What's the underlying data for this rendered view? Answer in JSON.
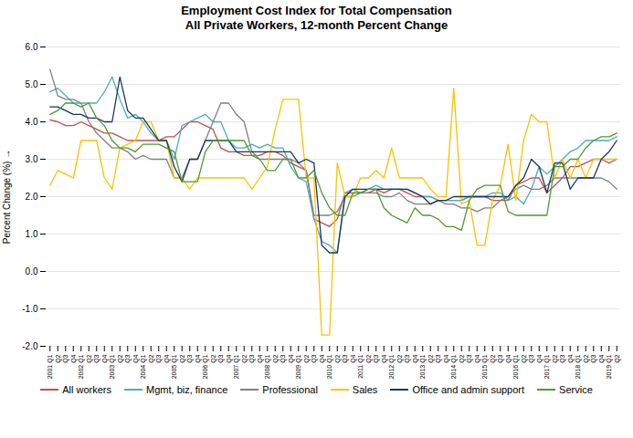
{
  "chart_data": {
    "type": "line",
    "title": "Employment Cost Index for Total Compensation\nAll Private Workers, 12-month Percent Change",
    "ylabel": "Percent Change (%)",
    "categories": [
      "2001 Q1",
      "Q2",
      "Q3",
      "Q4",
      "2002 Q1",
      "Q2",
      "Q3",
      "Q4",
      "2003 Q1",
      "Q2",
      "Q3",
      "Q4",
      "2004 Q1",
      "Q2",
      "Q3",
      "Q4",
      "2005 Q1",
      "Q2",
      "Q3",
      "Q4",
      "2006 Q1",
      "Q2",
      "Q3",
      "Q4",
      "2007 Q1",
      "Q2",
      "Q3",
      "Q4",
      "2008 Q1",
      "Q2",
      "Q3",
      "Q4",
      "2009 Q1",
      "Q2",
      "Q3",
      "Q4",
      "2010 Q1",
      "Q2",
      "Q3",
      "Q4",
      "2011 Q1",
      "Q2",
      "Q3",
      "Q4",
      "2012 Q1",
      "Q2",
      "Q3",
      "Q4",
      "2013 Q1",
      "Q2",
      "Q3",
      "Q4",
      "2014 Q1",
      "Q2",
      "Q3",
      "Q4",
      "2015 Q1",
      "Q2",
      "Q3",
      "Q4",
      "2016 Q1",
      "Q2",
      "Q3",
      "Q4",
      "2017 Q1",
      "Q2",
      "Q3",
      "Q4",
      "2018 Q1",
      "Q2",
      "Q3",
      "Q4",
      "2019 Q1",
      "Q2"
    ],
    "series": [
      {
        "name": "All workers",
        "color": "#C0504D",
        "values": [
          4.05,
          4.0,
          3.9,
          3.9,
          4.0,
          3.9,
          3.8,
          3.7,
          3.7,
          3.6,
          3.5,
          3.5,
          3.5,
          3.5,
          3.5,
          3.6,
          3.6,
          3.8,
          4.0,
          4.0,
          3.9,
          3.8,
          3.3,
          3.2,
          3.2,
          3.1,
          3.1,
          3.1,
          3.2,
          3.2,
          3.1,
          2.9,
          2.8,
          2.7,
          1.4,
          1.3,
          1.2,
          1.4,
          2.1,
          2.1,
          2.1,
          2.1,
          2.2,
          2.1,
          2.2,
          2.2,
          2.1,
          2.0,
          2.0,
          2.0,
          1.9,
          1.9,
          1.9,
          1.9,
          2.0,
          2.0,
          2.0,
          1.9,
          1.9,
          1.9,
          2.3,
          2.4,
          2.5,
          2.5,
          2.1,
          2.3,
          2.5,
          2.8,
          2.8,
          2.9,
          3.0,
          3.0,
          2.9,
          3.0
        ]
      },
      {
        "name": "Mgmt, biz, finance",
        "color": "#4BACC6",
        "values": [
          4.8,
          4.9,
          4.7,
          4.5,
          4.5,
          4.5,
          4.5,
          4.8,
          5.2,
          4.6,
          4.1,
          4.2,
          4.0,
          3.7,
          3.5,
          3.5,
          3.0,
          3.9,
          4.0,
          4.1,
          4.2,
          4.0,
          4.0,
          3.5,
          3.3,
          3.3,
          3.4,
          3.3,
          3.4,
          3.3,
          3.3,
          2.8,
          2.5,
          2.4,
          1.4,
          0.8,
          0.7,
          0.5,
          2.1,
          2.2,
          2.1,
          2.2,
          2.3,
          2.2,
          2.2,
          2.2,
          2.2,
          2.1,
          2.0,
          2.0,
          1.9,
          1.9,
          1.9,
          1.9,
          2.0,
          2.0,
          2.0,
          2.1,
          2.1,
          1.9,
          2.0,
          1.8,
          2.2,
          2.8,
          2.6,
          2.8,
          3.0,
          3.2,
          3.3,
          3.5,
          3.5,
          3.5,
          3.5,
          3.6
        ]
      },
      {
        "name": "Professional",
        "color": "#808080",
        "values": [
          5.4,
          4.7,
          4.6,
          4.6,
          4.5,
          4.0,
          3.7,
          3.5,
          3.3,
          3.3,
          3.2,
          3.0,
          3.1,
          3.0,
          3.0,
          3.0,
          2.5,
          2.5,
          3.0,
          3.0,
          3.5,
          4.0,
          4.5,
          4.5,
          4.2,
          4.0,
          3.2,
          3.0,
          3.0,
          3.0,
          3.0,
          3.0,
          2.9,
          2.7,
          1.5,
          1.5,
          1.5,
          1.6,
          2.0,
          2.0,
          2.1,
          2.1,
          2.1,
          2.0,
          2.0,
          2.1,
          1.9,
          1.8,
          1.8,
          1.8,
          1.9,
          1.8,
          1.8,
          1.7,
          1.7,
          1.6,
          1.7,
          1.7,
          1.9,
          2.0,
          2.2,
          2.3,
          2.2,
          2.2,
          2.3,
          2.5,
          2.5,
          2.5,
          2.5,
          2.5,
          2.5,
          2.5,
          2.4,
          2.2
        ]
      },
      {
        "name": "Sales",
        "color": "#FFC000",
        "values": [
          2.3,
          2.7,
          2.6,
          2.5,
          3.5,
          3.5,
          3.5,
          2.5,
          2.2,
          3.3,
          3.4,
          3.5,
          4.0,
          4.0,
          3.5,
          3.5,
          2.5,
          2.5,
          2.2,
          2.5,
          2.5,
          2.5,
          2.5,
          2.5,
          2.5,
          2.5,
          2.2,
          2.5,
          2.8,
          3.8,
          4.6,
          4.6,
          4.6,
          2.5,
          2.5,
          -1.7,
          -1.7,
          2.9,
          2.0,
          2.0,
          2.5,
          2.5,
          2.7,
          2.5,
          3.3,
          2.5,
          2.5,
          2.5,
          2.5,
          2.2,
          2.0,
          2.0,
          4.9,
          1.8,
          1.9,
          0.7,
          0.7,
          1.9,
          2.3,
          3.4,
          1.9,
          3.5,
          4.2,
          4.0,
          4.0,
          2.5,
          3.0,
          2.5,
          3.0,
          2.5,
          3.0,
          3.0,
          3.0,
          3.0
        ]
      },
      {
        "name": "Office and admin support",
        "color": "#17375E",
        "values": [
          4.4,
          4.4,
          4.3,
          4.2,
          4.2,
          4.1,
          4.1,
          4.0,
          4.0,
          5.2,
          4.3,
          4.1,
          4.1,
          3.8,
          3.5,
          3.5,
          2.8,
          2.4,
          3.0,
          3.0,
          3.5,
          3.5,
          3.5,
          3.5,
          3.2,
          3.2,
          3.2,
          3.2,
          3.2,
          3.2,
          3.2,
          3.2,
          2.9,
          3.0,
          2.9,
          0.7,
          0.5,
          0.5,
          2.0,
          2.2,
          2.2,
          2.2,
          2.2,
          2.2,
          2.2,
          2.2,
          2.2,
          2.1,
          2.0,
          1.8,
          1.9,
          1.9,
          2.0,
          2.0,
          2.0,
          2.0,
          2.0,
          2.0,
          2.0,
          2.0,
          2.3,
          2.5,
          3.0,
          2.8,
          2.1,
          2.9,
          2.9,
          2.2,
          2.5,
          2.5,
          2.5,
          3.0,
          3.2,
          3.5
        ]
      },
      {
        "name": "Service",
        "color": "#4E9A2E",
        "values": [
          4.2,
          4.3,
          4.5,
          4.5,
          4.4,
          4.5,
          4.1,
          3.9,
          3.5,
          3.3,
          3.3,
          3.2,
          3.4,
          3.4,
          3.4,
          3.3,
          3.2,
          2.4,
          2.4,
          2.4,
          3.2,
          3.5,
          3.5,
          3.5,
          3.5,
          3.5,
          3.1,
          3.0,
          2.7,
          2.7,
          3.0,
          3.0,
          2.5,
          2.5,
          2.7,
          2.1,
          1.7,
          1.5,
          1.5,
          2.1,
          2.1,
          2.2,
          2.2,
          1.7,
          1.5,
          1.4,
          1.3,
          1.7,
          1.5,
          1.5,
          1.4,
          1.2,
          1.2,
          1.1,
          1.9,
          2.2,
          2.3,
          2.3,
          2.3,
          1.6,
          1.5,
          1.5,
          1.5,
          1.5,
          1.5,
          2.8,
          2.8,
          3.0,
          3.0,
          3.3,
          3.5,
          3.6,
          3.6,
          3.7
        ]
      }
    ],
    "ylim": [
      -2.0,
      6.0
    ],
    "yticks": [
      {
        "value": -2.0,
        "label": "-2.0"
      },
      {
        "value": -1.0,
        "label": "-1.0"
      },
      {
        "value": 0.0,
        "label": "0.0"
      },
      {
        "value": 1.0,
        "label": "1.0"
      },
      {
        "value": 2.0,
        "label": "2.0"
      },
      {
        "value": 3.0,
        "label": "3.0"
      },
      {
        "value": 4.0,
        "label": "4.0"
      },
      {
        "value": 5.0,
        "label": "5.0"
      },
      {
        "value": 6.0,
        "label": "6.0"
      }
    ],
    "grid": true,
    "legend": "bottom"
  }
}
